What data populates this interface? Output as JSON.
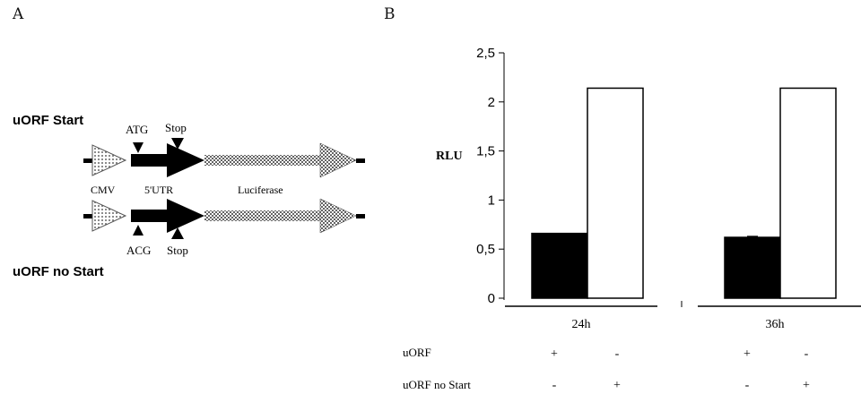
{
  "panels": {
    "a": "A",
    "b": "B"
  },
  "diagram": {
    "construct1_label": "uORF Start",
    "construct2_label": "uORF no Start",
    "atg": "ATG",
    "stop1": "Stop",
    "acg": "ACG",
    "stop2": "Stop",
    "cmv": "CMV",
    "utr": "5'UTR",
    "luciferase": "Luciferase"
  },
  "chart_data": {
    "type": "bar",
    "ylabel": "RLU",
    "ylim": [
      0,
      2.5
    ],
    "yticks": [
      "0",
      "0,5",
      "1",
      "1,5",
      "2",
      "2,5"
    ],
    "groups": [
      "24h",
      "36h"
    ],
    "series": [
      {
        "values": [
          0.66,
          0.62
        ],
        "error": [
          0.0,
          0.01
        ],
        "color": "#000000"
      },
      {
        "values": [
          2.14,
          2.14
        ],
        "error": [
          0.0,
          0.0
        ],
        "color": "#ffffff"
      }
    ],
    "conditions": [
      {
        "label": "uORF",
        "marks": [
          "+",
          "-",
          "+",
          "-"
        ]
      },
      {
        "label": "uORF no Start",
        "marks": [
          "-",
          "+",
          "-",
          "+"
        ]
      }
    ]
  }
}
